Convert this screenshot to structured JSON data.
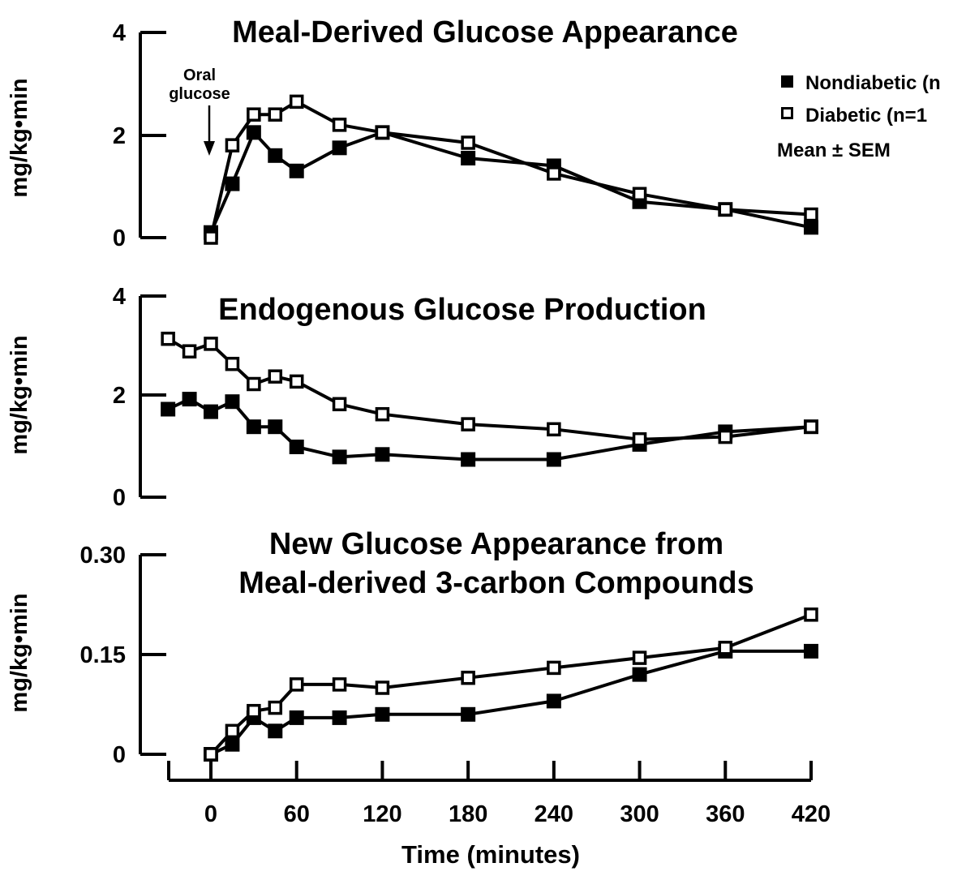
{
  "chart_data": [
    {
      "type": "line",
      "title": "Meal-Derived Glucose Appearance",
      "xlabel": "",
      "ylabel": "mg/kg•min",
      "ylim": [
        0,
        4
      ],
      "yticks": [
        "0",
        "2",
        "4"
      ],
      "grid": false,
      "annotation": {
        "line1": "Oral",
        "line2": "glucose"
      },
      "legend": {
        "placement": "top-right",
        "entries": [
          "Nondiabetic (n",
          "Diabetic (n=1"
        ],
        "note": "Mean ± SEM"
      },
      "series": [
        {
          "name": "Nondiabetic",
          "marker": "filled-square",
          "x": [
            0,
            15,
            30,
            45,
            60,
            90,
            120,
            180,
            240,
            300,
            360,
            420
          ],
          "y": [
            0.1,
            1.05,
            2.05,
            1.6,
            1.3,
            1.75,
            2.05,
            1.55,
            1.4,
            0.7,
            0.55,
            0.2
          ]
        },
        {
          "name": "Diabetic",
          "marker": "open-square",
          "x": [
            0,
            15,
            30,
            45,
            60,
            90,
            120,
            180,
            240,
            300,
            360,
            420
          ],
          "y": [
            0.0,
            1.8,
            2.4,
            2.4,
            2.65,
            2.2,
            2.05,
            1.85,
            1.25,
            0.85,
            0.55,
            0.45
          ]
        }
      ]
    },
    {
      "type": "line",
      "title": "Endogenous Glucose Production",
      "xlabel": "",
      "ylabel": "mg/kg•min",
      "ylim": [
        0,
        4
      ],
      "yticks": [
        "0",
        "2",
        "4"
      ],
      "grid": false,
      "series": [
        {
          "name": "Nondiabetic",
          "marker": "filled-square",
          "x": [
            -30,
            -15,
            0,
            15,
            30,
            45,
            60,
            90,
            120,
            180,
            240,
            300,
            360,
            420
          ],
          "y": [
            1.75,
            1.95,
            1.7,
            1.9,
            1.4,
            1.4,
            1.0,
            0.8,
            0.85,
            0.75,
            0.75,
            1.05,
            1.3,
            1.4
          ]
        },
        {
          "name": "Diabetic",
          "marker": "open-square",
          "x": [
            -30,
            -15,
            0,
            15,
            30,
            45,
            60,
            90,
            120,
            180,
            240,
            300,
            360,
            420
          ],
          "y": [
            3.15,
            2.9,
            3.05,
            2.65,
            2.25,
            2.4,
            2.3,
            1.85,
            1.65,
            1.45,
            1.35,
            1.15,
            1.2,
            1.4
          ]
        }
      ]
    },
    {
      "type": "line",
      "title": "New Glucose Appearance from Meal-derived 3-carbon Compounds",
      "title_lines": [
        "New Glucose Appearance from",
        "Meal-derived 3-carbon Compounds"
      ],
      "xlabel": "Time (minutes)",
      "ylabel": "mg/kg•min",
      "xlim": [
        -30,
        420
      ],
      "xticks": [
        "0",
        "60",
        "120",
        "180",
        "240",
        "300",
        "360",
        "420"
      ],
      "ylim": [
        0,
        0.3
      ],
      "yticks": [
        "0",
        "0.15",
        "0.30"
      ],
      "grid": false,
      "series": [
        {
          "name": "Nondiabetic",
          "marker": "filled-square",
          "x": [
            0,
            15,
            30,
            45,
            60,
            90,
            120,
            180,
            240,
            300,
            360,
            420
          ],
          "y": [
            0.0,
            0.015,
            0.055,
            0.035,
            0.055,
            0.055,
            0.06,
            0.06,
            0.08,
            0.12,
            0.155,
            0.155
          ]
        },
        {
          "name": "Diabetic",
          "marker": "open-square",
          "x": [
            0,
            15,
            30,
            45,
            60,
            90,
            120,
            180,
            240,
            300,
            360,
            420
          ],
          "y": [
            0.0,
            0.035,
            0.065,
            0.07,
            0.105,
            0.105,
            0.1,
            0.115,
            0.13,
            0.145,
            0.16,
            0.21
          ]
        }
      ]
    }
  ]
}
